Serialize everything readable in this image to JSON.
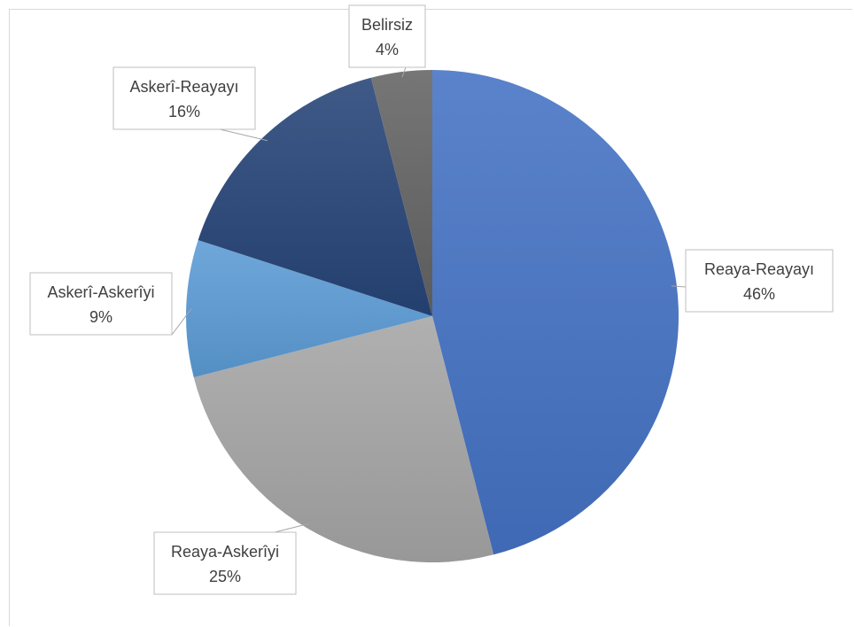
{
  "chart_data": {
    "type": "pie",
    "slices": [
      {
        "label": "Reaya-Reayayı",
        "value": 46,
        "display": "46%",
        "color": "#4472c4"
      },
      {
        "label": "Reaya-Askerîyi",
        "value": 25,
        "display": "25%",
        "color": "#a5a5a5"
      },
      {
        "label": "Askerî-Askerîyi",
        "value": 9,
        "display": "9%",
        "color": "#5b9bd5"
      },
      {
        "label": "Askerî-Reayayı",
        "value": 16,
        "display": "16%",
        "color": "#264478"
      },
      {
        "label": "Belirsiz",
        "value": 4,
        "display": "4%",
        "color": "#636363"
      }
    ],
    "start_angle": "12 o'clock",
    "direction": "clockwise",
    "legend": "none",
    "data_labels": "callouts"
  }
}
